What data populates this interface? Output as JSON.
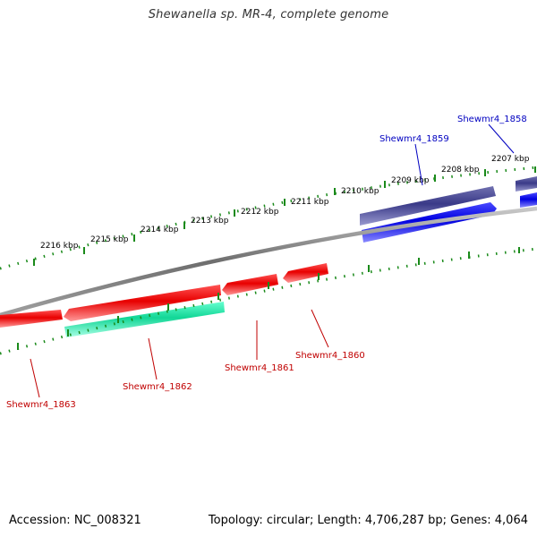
{
  "title": "Shewanella sp. MR-4, complete genome",
  "accession": "Accession: NC_008321",
  "summary": "Topology: circular; Length: 4,706,287 bp; Genes: 4,064",
  "colors": {
    "backbone": "#7f7f7f",
    "tick": "#1a8a1a",
    "gene_red": "#e01010",
    "gene_green": "#10d89a",
    "gene_navy": "#3a3a8a",
    "gene_blue": "#0808e0",
    "label_red": "#c00000",
    "label_blue": "#0000c0"
  },
  "kbp_labels": [
    "2207 kbp",
    "2208 kbp",
    "2209 kbp",
    "2210 kbp",
    "2211 kbp",
    "2212 kbp",
    "2213 kbp",
    "2214 kbp",
    "2215 kbp",
    "2216 kbp"
  ],
  "gene_labels": [
    {
      "text": "Shewmr4_1858",
      "color": "blue"
    },
    {
      "text": "Shewmr4_1859",
      "color": "blue"
    },
    {
      "text": "Shewmr4_1860",
      "color": "red"
    },
    {
      "text": "Shewmr4_1861",
      "color": "red"
    },
    {
      "text": "Shewmr4_1862",
      "color": "red"
    },
    {
      "text": "Shewmr4_1863",
      "color": "red"
    }
  ]
}
